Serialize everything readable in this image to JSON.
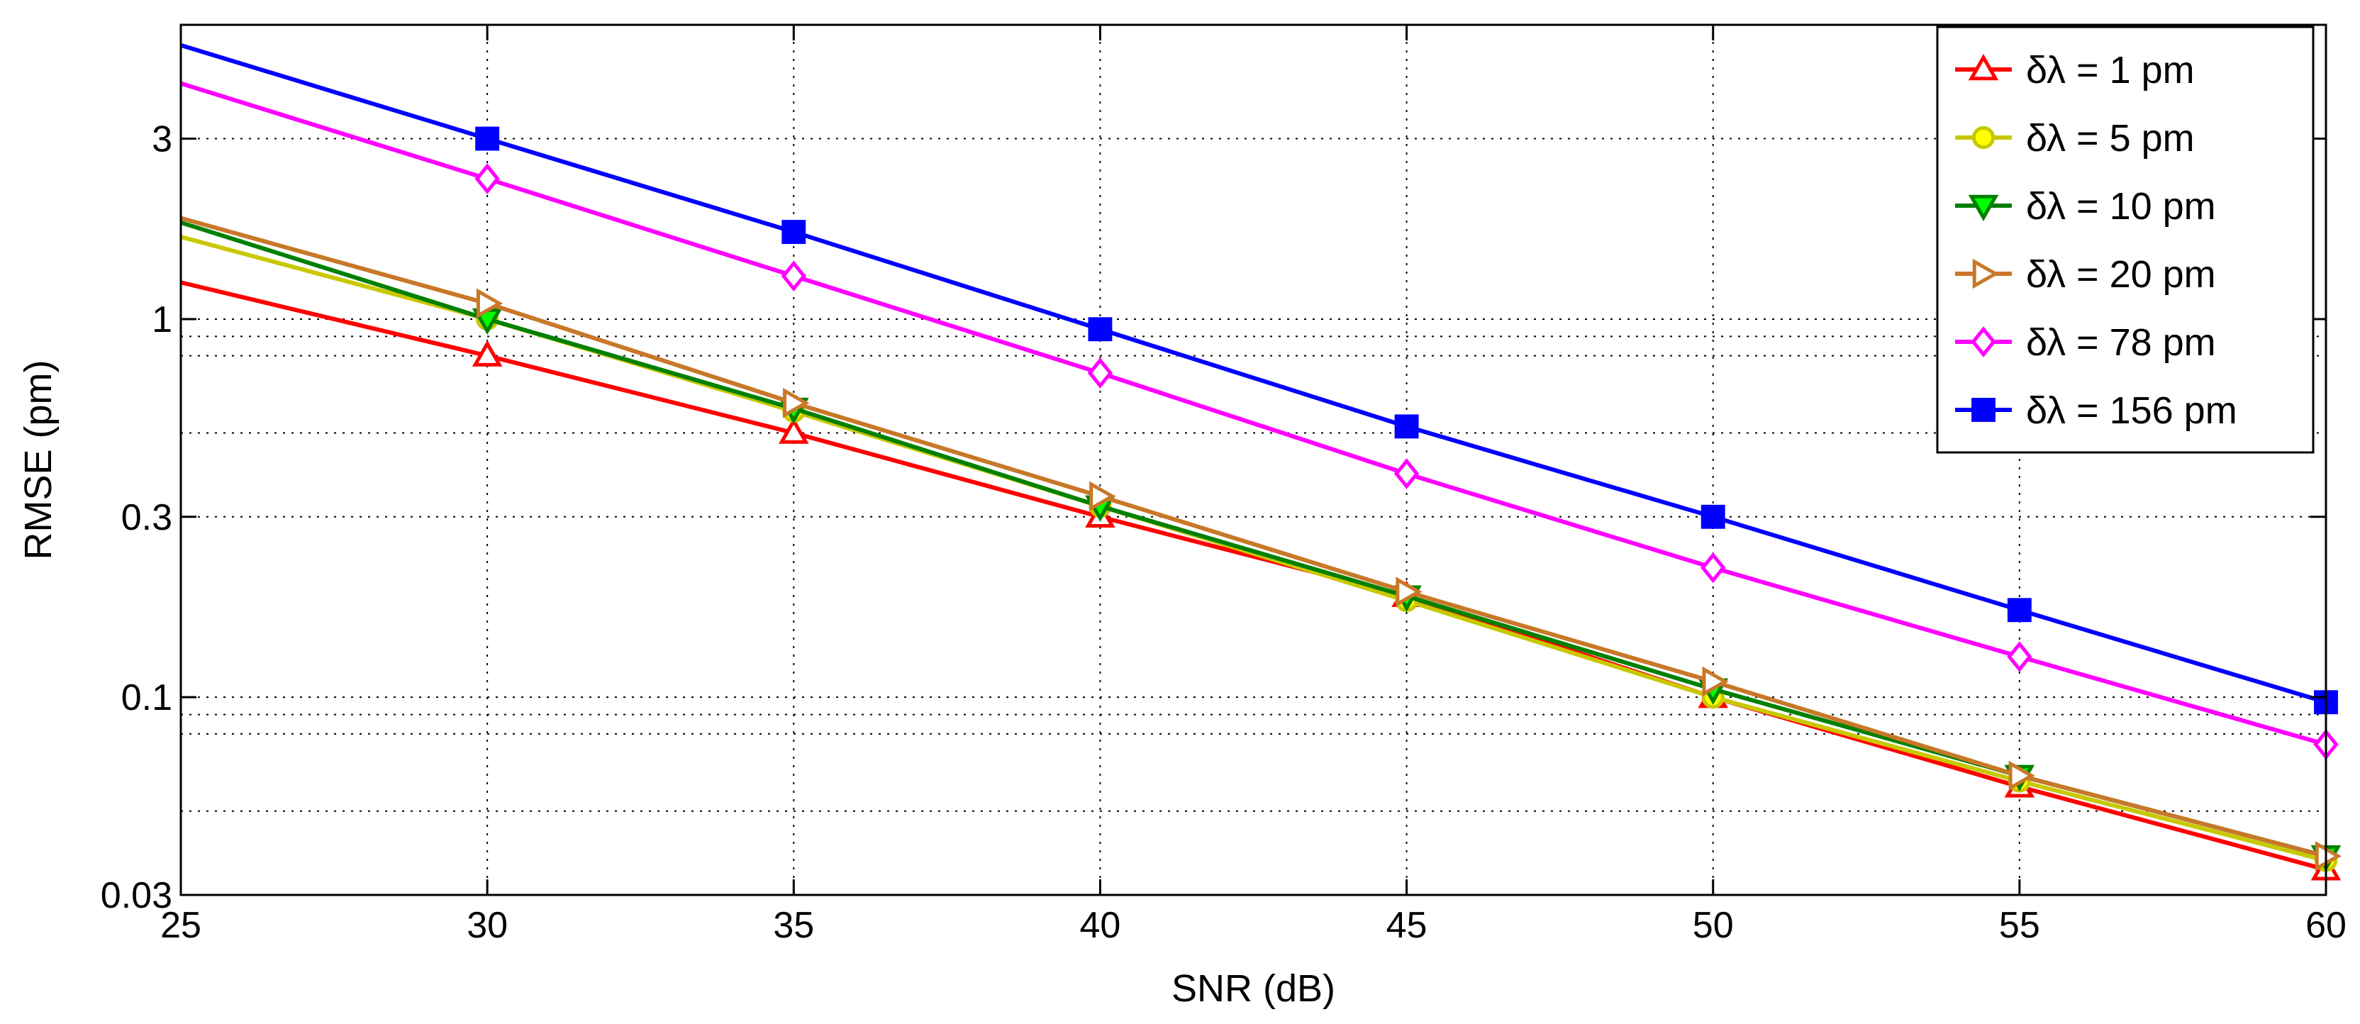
{
  "chart_data": {
    "type": "line",
    "xlabel": "SNR (dB)",
    "ylabel": "RMSE (pm)",
    "x_scale": "linear",
    "y_scale": "log",
    "xlim": [
      25,
      60
    ],
    "ylim": [
      0.03,
      6
    ],
    "x_ticks": [
      25,
      30,
      35,
      40,
      45,
      50,
      55,
      60
    ],
    "x_tick_labels": [
      "25",
      "30",
      "35",
      "40",
      "45",
      "50",
      "55",
      "60"
    ],
    "y_ticks": [
      0.03,
      0.1,
      0.3,
      1,
      3
    ],
    "y_tick_labels": [
      "0.03",
      "0.1",
      "0.3",
      "1",
      "3"
    ],
    "y_grid": [
      0.05,
      0.08,
      0.09,
      0.1,
      0.3,
      0.5,
      0.8,
      0.9,
      1,
      3
    ],
    "grid": true,
    "legend_position": "top-right",
    "x": [
      25,
      30,
      35,
      40,
      45,
      50,
      55,
      60
    ],
    "series": [
      {
        "name": "δλ = 1 pm",
        "color": "#ff0000",
        "marker": "triangle-up",
        "marker_fill": "#ffffff",
        "values": [
          1.25,
          0.8,
          0.5,
          0.3,
          0.185,
          0.1,
          0.058,
          0.035
        ],
        "marker_at": [
          30,
          35,
          40,
          45,
          50,
          55,
          60
        ]
      },
      {
        "name": "δλ = 5 pm",
        "color": "#c8c800",
        "marker": "circle",
        "marker_fill": "#ffff00",
        "values": [
          1.65,
          1.0,
          0.57,
          0.32,
          0.18,
          0.1,
          0.06,
          0.037
        ],
        "marker_at": [
          30,
          35,
          40,
          45,
          50,
          55,
          60
        ]
      },
      {
        "name": "δλ = 10 pm",
        "color": "#008000",
        "marker": "triangle-down",
        "marker_fill": "#00ff00",
        "values": [
          1.8,
          1.0,
          0.58,
          0.32,
          0.185,
          0.105,
          0.062,
          0.038
        ],
        "marker_at": [
          30,
          35,
          40,
          45,
          50,
          55,
          60
        ]
      },
      {
        "name": "δλ = 20 pm",
        "color": "#c87828",
        "marker": "triangle-right",
        "marker_fill": "#ffffff",
        "values": [
          1.85,
          1.1,
          0.6,
          0.34,
          0.19,
          0.11,
          0.062,
          0.038
        ],
        "marker_at": [
          30,
          35,
          40,
          45,
          50,
          55,
          60
        ]
      },
      {
        "name": "δλ = 78 pm",
        "color": "#ff00ff",
        "marker": "diamond",
        "marker_fill": "#ffffff",
        "values": [
          4.2,
          2.35,
          1.3,
          0.72,
          0.39,
          0.22,
          0.128,
          0.075
        ],
        "marker_at": [
          30,
          35,
          40,
          45,
          50,
          55,
          60
        ]
      },
      {
        "name": "δλ = 156 pm",
        "color": "#0000ff",
        "marker": "square",
        "marker_fill": "#0000ff",
        "values": [
          5.3,
          3.0,
          1.7,
          0.94,
          0.52,
          0.3,
          0.17,
          0.097
        ],
        "marker_at": [
          30,
          35,
          40,
          45,
          50,
          55,
          60
        ]
      }
    ]
  }
}
